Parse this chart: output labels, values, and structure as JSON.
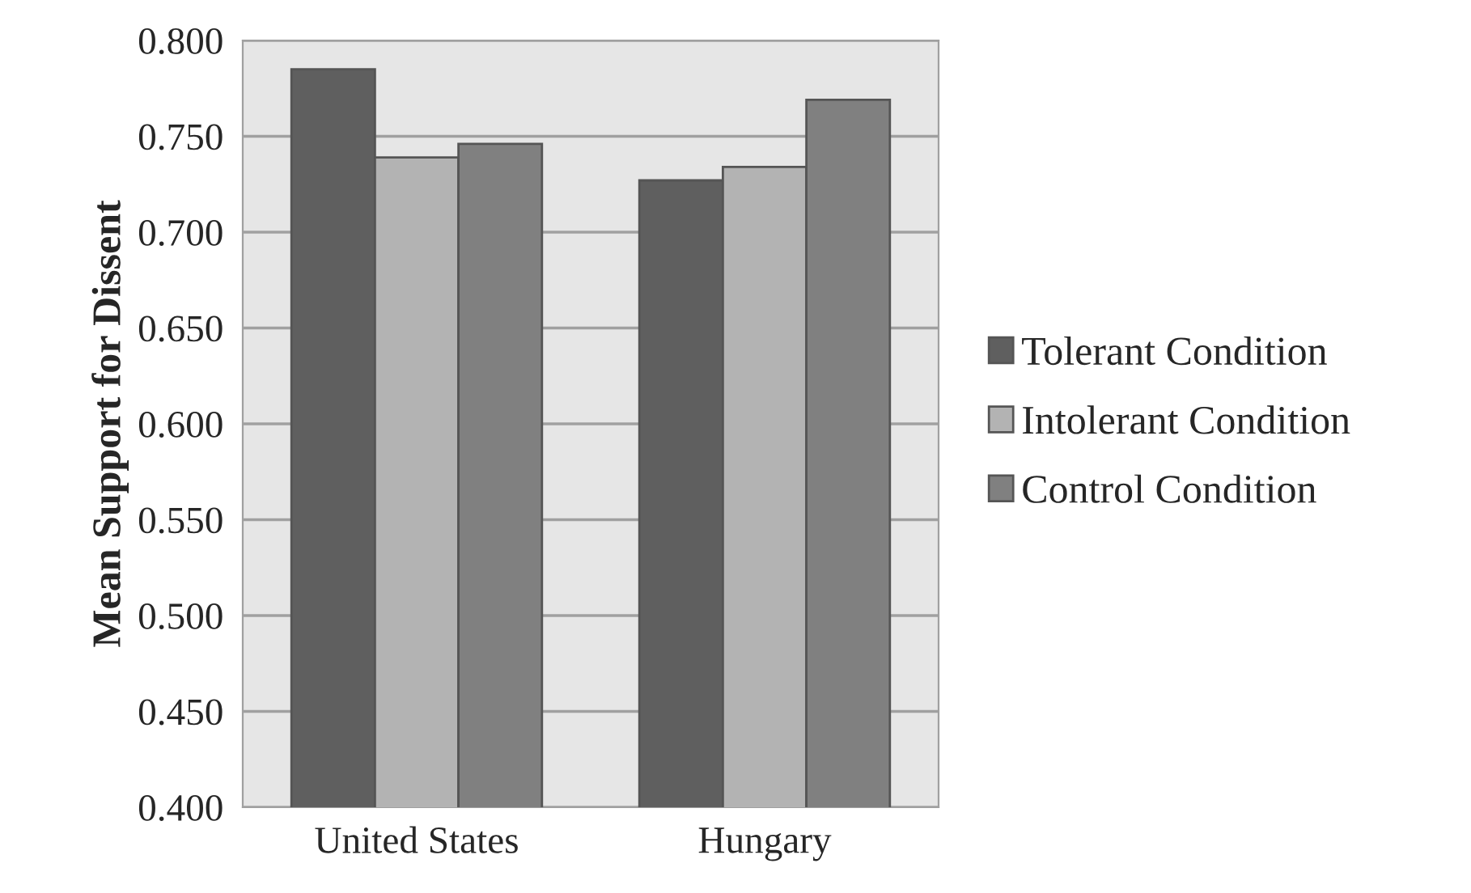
{
  "chart_data": {
    "type": "bar",
    "ylabel": "Mean Support for Dissent",
    "categories": [
      "United States",
      "Hungary"
    ],
    "series": [
      {
        "name": "Tolerant Condition",
        "color": "#5f5f5f",
        "values": [
          0.785,
          0.727
        ]
      },
      {
        "name": "Intolerant Condition",
        "color": "#b3b3b3",
        "values": [
          0.739,
          0.734
        ]
      },
      {
        "name": "Control Condition",
        "color": "#808080",
        "values": [
          0.746,
          0.769
        ]
      }
    ],
    "ylim": [
      0.4,
      0.8
    ],
    "yticks": [
      {
        "value": 0.4,
        "label": "0.400"
      },
      {
        "value": 0.45,
        "label": "0.450"
      },
      {
        "value": 0.5,
        "label": "0.500"
      },
      {
        "value": 0.55,
        "label": "0.550"
      },
      {
        "value": 0.6,
        "label": "0.600"
      },
      {
        "value": 0.65,
        "label": "0.650"
      },
      {
        "value": 0.7,
        "label": "0.700"
      },
      {
        "value": 0.75,
        "label": "0.750"
      },
      {
        "value": 0.8,
        "label": "0.800"
      }
    ],
    "grid": "y",
    "legend": "right"
  }
}
